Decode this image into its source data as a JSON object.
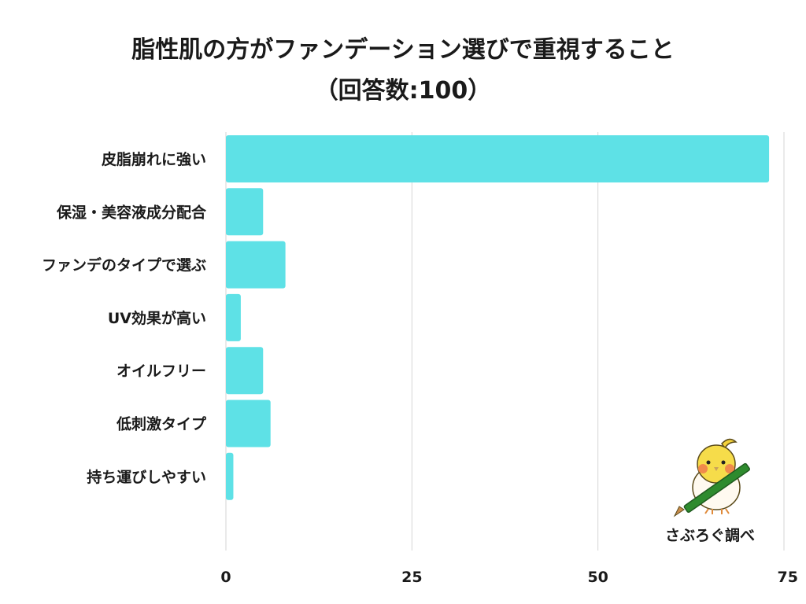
{
  "title_line1": "脂性肌の方がファンデーション選びで重視すること",
  "title_line2": "（回答数:100）",
  "brand": "さぶろぐ調べ",
  "colors": {
    "bar": "#5ee1e6",
    "grid": "#d6d6d6",
    "text": "#1a1a1a"
  },
  "chart_data": {
    "type": "bar",
    "orientation": "horizontal",
    "title": "脂性肌の方がファンデーション選びで重視すること（回答数:100）",
    "categories": [
      "皮脂崩れに強い",
      "保湿・美容液成分配合",
      "ファンデのタイプで選ぶ",
      "UV効果が高い",
      "オイルフリー",
      "低刺激タイプ",
      "持ち運びしやすい"
    ],
    "values": [
      73,
      5,
      8,
      2,
      5,
      6,
      1
    ],
    "xlim": [
      0,
      75
    ],
    "xticks": [
      0,
      25,
      50,
      75
    ],
    "grid": true
  }
}
